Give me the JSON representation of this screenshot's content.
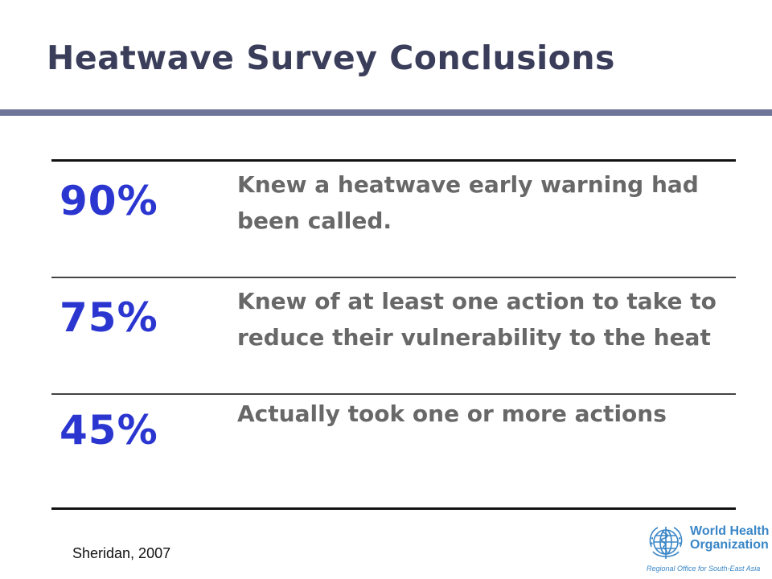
{
  "slide": {
    "title": "Heatwave Survey Conclusions",
    "rows": [
      {
        "value": "90%",
        "description": "Knew a heatwave early warning had been called."
      },
      {
        "value": "75%",
        "description": "Knew of at least one action to take to reduce their vulnerability to the heat"
      },
      {
        "value": "45%",
        "description": "Actually took one or more actions"
      }
    ],
    "source": "Sheridan, 2007"
  },
  "logo": {
    "name_line1": "World Health",
    "name_line2": "Organization",
    "region": "Regional Office for South-East Asia",
    "icon": "who-emblem-icon"
  },
  "colors": {
    "title": "#3b3e5a",
    "title_rule": "#6e7599",
    "stat_value": "#2b36d0",
    "description": "#686868",
    "logo": "#3a86c6"
  }
}
